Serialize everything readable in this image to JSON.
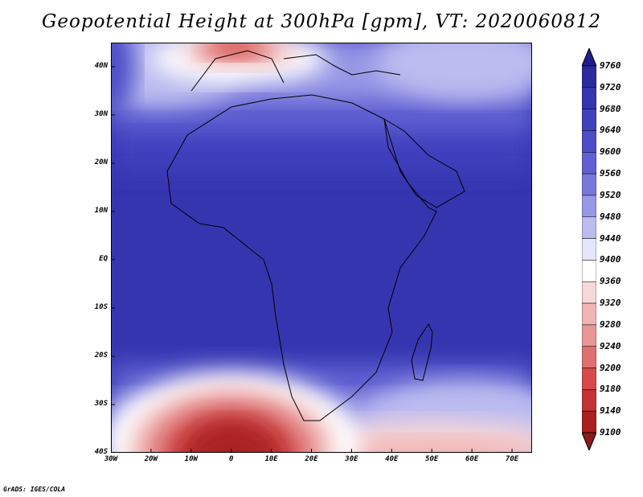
{
  "title": "Geopotential Height at 300hPa [gpm], VT: 2020060812",
  "credit": "GrADS: IGES/COLA",
  "map": {
    "lon_range": [
      -30,
      75
    ],
    "lat_range": [
      -40,
      45
    ],
    "lat_labels": [
      "40N",
      "30N",
      "20N",
      "10N",
      "EQ",
      "10S",
      "20S",
      "30S",
      "40S"
    ],
    "lat_values": [
      40,
      30,
      20,
      10,
      0,
      -10,
      -20,
      -30,
      -40
    ],
    "lon_labels": [
      "30W",
      "20W",
      "10W",
      "0",
      "10E",
      "20E",
      "30E",
      "40E",
      "50E",
      "60E",
      "70E"
    ],
    "lon_values": [
      -30,
      -20,
      -10,
      0,
      10,
      20,
      30,
      40,
      50,
      60,
      70
    ]
  },
  "colorbar": {
    "levels": [
      "9760",
      "9720",
      "9680",
      "9640",
      "9600",
      "9560",
      "9520",
      "9480",
      "9440",
      "9400",
      "9360",
      "9320",
      "9280",
      "9240",
      "9200",
      "9180",
      "9140",
      "9100"
    ],
    "colors": [
      "#1e1e8c",
      "#2a2a9e",
      "#3535b0",
      "#4141be",
      "#4d4dc8",
      "#6060d2",
      "#7878dc",
      "#9898e6",
      "#bcbcf0",
      "#e6e6fa",
      "#ffffff",
      "#f7d7d7",
      "#f0b4b4",
      "#e89696",
      "#de7070",
      "#d64a4a",
      "#c23232",
      "#a82020",
      "#8b1a1a"
    ]
  }
}
